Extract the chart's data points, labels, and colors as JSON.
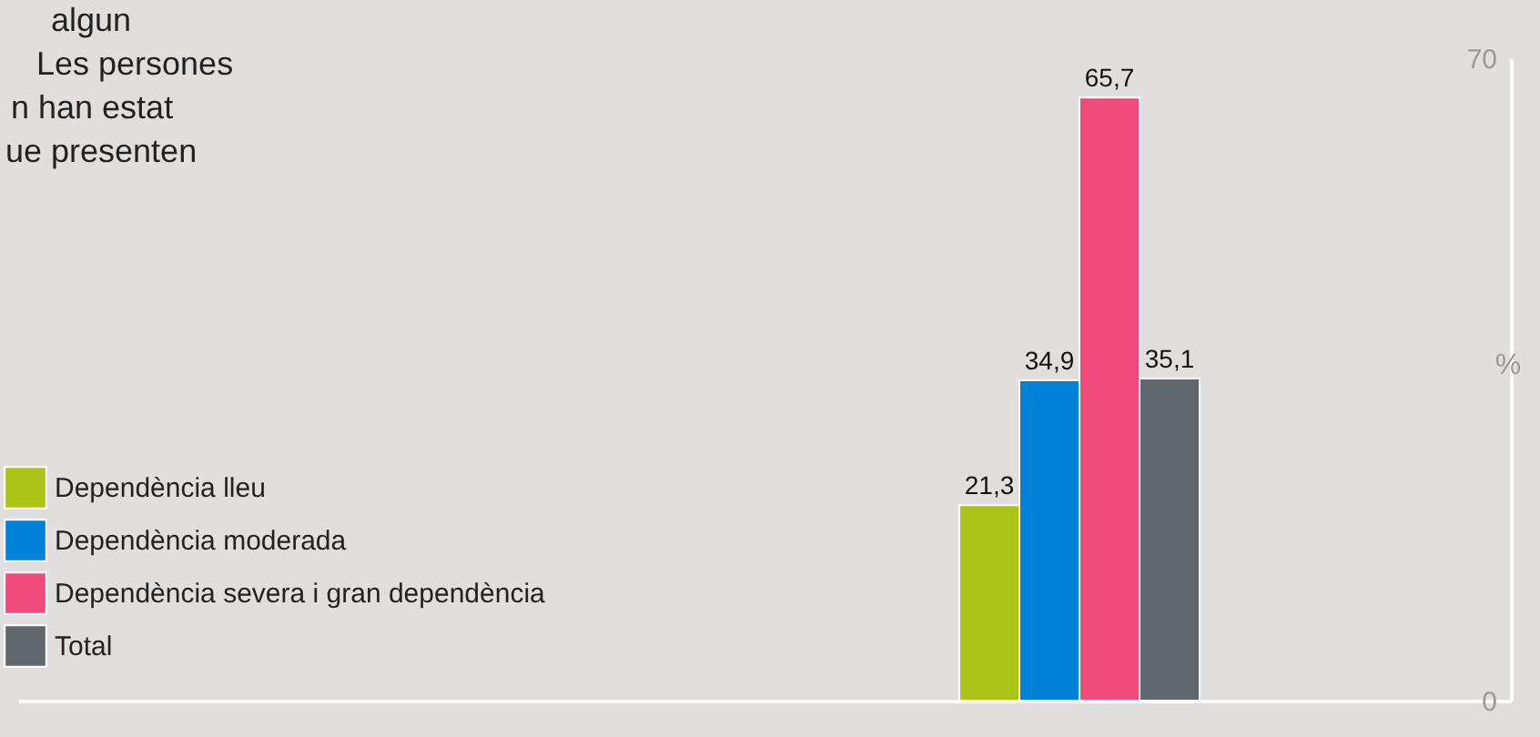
{
  "chart_data": {
    "type": "bar",
    "ylabel": "%",
    "annotations": [
      "algun",
      "Les persones",
      "n han estat",
      "ue presenten"
    ],
    "categories": [
      null
    ],
    "series": [
      {
        "name": "Dependència lleu",
        "color": "#a9c417",
        "values": [
          21.3
        ],
        "value_labels": [
          "21,3"
        ]
      },
      {
        "name": "Dependència moderada",
        "color": "#0083d6",
        "values": [
          34.9
        ],
        "value_labels": [
          "34,9"
        ]
      },
      {
        "name": "Dependència severa i gran dependència",
        "color": "#f04a7a",
        "values": [
          65.7
        ],
        "value_labels": [
          "65,7"
        ]
      },
      {
        "name": "Total",
        "color": "#60676d",
        "values": [
          35.1
        ],
        "value_labels": [
          "35,1"
        ]
      }
    ],
    "ylim": [
      0,
      70
    ],
    "yticks": [
      0,
      70
    ],
    "legend": "bottom left"
  }
}
